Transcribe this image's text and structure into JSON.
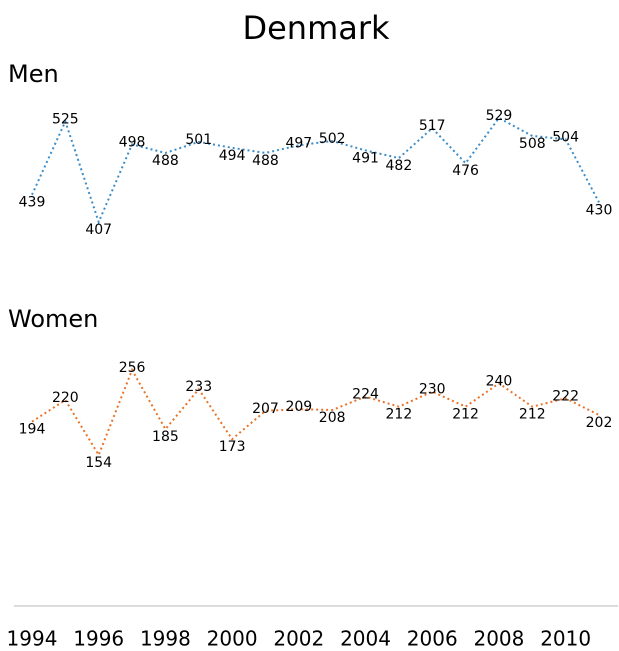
{
  "chart_data": {
    "type": "line",
    "title": "Denmark",
    "x": [
      1994,
      1995,
      1996,
      1997,
      1998,
      1999,
      2000,
      2001,
      2002,
      2003,
      2004,
      2005,
      2006,
      2007,
      2008,
      2009,
      2010,
      2011
    ],
    "xticks": [
      1994,
      1996,
      1998,
      2000,
      2002,
      2004,
      2006,
      2008,
      2010
    ],
    "xlim": [
      1994,
      2011
    ],
    "series": [
      {
        "name": "Men",
        "color": "#3c8dc8",
        "values": [
          439,
          525,
          407,
          498,
          488,
          501,
          494,
          488,
          497,
          502,
          491,
          482,
          517,
          476,
          529,
          508,
          504,
          430
        ]
      },
      {
        "name": "Women",
        "color": "#e8742a",
        "values": [
          194,
          220,
          154,
          256,
          185,
          233,
          173,
          207,
          209,
          208,
          224,
          212,
          230,
          212,
          240,
          212,
          222,
          202
        ]
      }
    ]
  }
}
